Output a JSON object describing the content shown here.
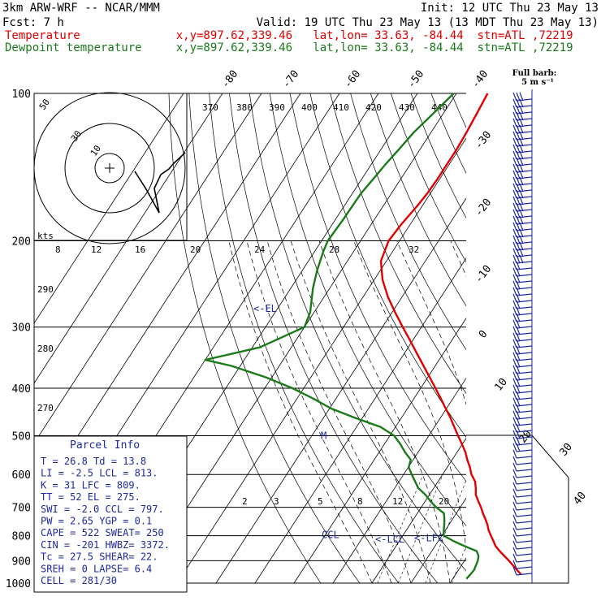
{
  "header": {
    "model": "3km ARW-WRF -- NCAR/MMM",
    "init": "Init: 12 UTC Thu 23 May 13",
    "fcst": "Fcst:     7 h",
    "valid": "Valid: 19 UTC Thu 23 May 13 (13 MDT Thu 23 May 13)",
    "line_temp": "Temperature              x,y=897.62,339.46   lat,lon= 33.63, -84.44  stn=ATL ,72219",
    "line_dew": "Dewpoint temperature     x,y=897.62,339.46   lat,lon= 33.63, -84.44  stn=ATL ,72219"
  },
  "colors": {
    "temperature": "#e00000",
    "dewpoint": "#1a7a1a",
    "header_red": "#e00000",
    "header_green": "#1a7a1a",
    "parcel_text": "#1e2aa0",
    "barb": "#1e2aa0"
  },
  "barb_legend": {
    "line1": "Full barb:",
    "line2": "5 m s⁻¹"
  },
  "hodograph": {
    "kts_label": "kts",
    "ring_labels": [
      "50",
      "30",
      "10"
    ],
    "kt_ticks": [
      "8",
      "12",
      "16",
      "20",
      "24",
      "28",
      "32"
    ],
    "theta_labels": [
      "370",
      "380",
      "390",
      "400",
      "410",
      "420",
      "430",
      "440"
    ],
    "theta_lower": [
      "290",
      "280",
      "270"
    ]
  },
  "chart_data": {
    "type": "line",
    "title": "",
    "ylabel": "",
    "y_scale": "log-pressure",
    "ylim": [
      1000,
      100
    ],
    "pressure_ticks": [
      100,
      200,
      300,
      400,
      500,
      600,
      700,
      800,
      900,
      1000
    ],
    "pressure_tick_labels": [
      "100",
      "200",
      "300",
      "400",
      "500",
      "600",
      "700",
      "800",
      "900",
      "1000"
    ],
    "skewed_temperature_labels": [
      "-80",
      "-70",
      "-60",
      "-50",
      "-40",
      "-30",
      "-20",
      "-10",
      "0",
      "10",
      "20",
      "30",
      "40"
    ],
    "mixing_ratio_labels": [
      "2",
      "3",
      "5",
      "8",
      "12",
      "20"
    ],
    "series": [
      {
        "name": "Temperature",
        "p": [
          960,
          940,
          920,
          900,
          880,
          860,
          840,
          820,
          800,
          780,
          760,
          740,
          720,
          700,
          680,
          660,
          640,
          620,
          600,
          580,
          560,
          540,
          520,
          500,
          480,
          460,
          440,
          420,
          400,
          380,
          360,
          340,
          320,
          300,
          280,
          260,
          240,
          220,
          200,
          185,
          170,
          160,
          150,
          140,
          130,
          120,
          110,
          100
        ],
        "t": [
          26.8,
          25.0,
          23.2,
          21.4,
          19.4,
          17.4,
          15.5,
          14.1,
          12.6,
          11.1,
          9.9,
          8.4,
          6.8,
          5.3,
          3.6,
          1.9,
          0.8,
          -0.5,
          -2.6,
          -4.2,
          -6.1,
          -7.9,
          -10.1,
          -12.5,
          -14.9,
          -17.4,
          -20.2,
          -23.1,
          -26.2,
          -29.5,
          -33.0,
          -36.7,
          -40.6,
          -44.8,
          -49.2,
          -53.7,
          -57.9,
          -61.4,
          -62.8,
          -62.3,
          -61.3,
          -60.8,
          -60.6,
          -60.6,
          -60.6,
          -60.9,
          -61.4,
          -62.0
        ]
      },
      {
        "name": "Dewpoint temperature",
        "p": [
          980,
          960,
          940,
          920,
          900,
          880,
          860,
          840,
          820,
          800,
          780,
          760,
          740,
          720,
          700,
          680,
          660,
          640,
          620,
          600,
          580,
          560,
          540,
          520,
          500,
          480,
          460,
          440,
          420,
          400,
          380,
          360,
          350,
          330,
          300,
          280,
          250,
          230,
          210,
          200,
          180,
          160,
          150,
          140,
          130,
          120,
          110,
          100
        ],
        "t": [
          13.5,
          13.8,
          14.0,
          13.7,
          13.4,
          12.8,
          11.5,
          7.5,
          3.8,
          0.5,
          -0.4,
          -1.2,
          -2.1,
          -3.2,
          -6.2,
          -8.7,
          -11.0,
          -13.9,
          -15.9,
          -17.9,
          -19.9,
          -20.6,
          -23.4,
          -25.9,
          -28.9,
          -33.8,
          -41.8,
          -49.6,
          -55.8,
          -62.9,
          -71.5,
          -82.3,
          -90.0,
          -78.1,
          -70.0,
          -71.0,
          -74.3,
          -76.2,
          -77.8,
          -78.4,
          -78.0,
          -77.8,
          -77.1,
          -76.4,
          -75.4,
          -74.4,
          -72.6,
          -70.7
        ]
      }
    ],
    "annotations": [
      {
        "label": "<-EL",
        "p": 275
      },
      {
        "label": "<-LCL",
        "p": 813
      },
      {
        "label": "<-LFC",
        "p": 809
      },
      {
        "label": "CCL",
        "p": 797
      },
      {
        "label": "M",
        "p": 500
      }
    ]
  },
  "parcel_info": {
    "title": "Parcel Info",
    "rows": [
      "T  =   26.8  Td =  13.8",
      "LI =   -2.5  LCL =  813.",
      "K  =     31  LFC =  809.",
      "TT =     52  EL  =  275.",
      "SWI =  -2.0  CCL =  797.",
      "PW =   2.65  YGP =   0.1",
      "CAPE =  522  SWEAT=  250",
      "CIN  = -201  HWBZ= 3372.",
      "Tc   = 27.5  SHEAR=  22.",
      "SREH =    0  LAPSE=  6.4",
      "CELL = 281/30"
    ]
  }
}
